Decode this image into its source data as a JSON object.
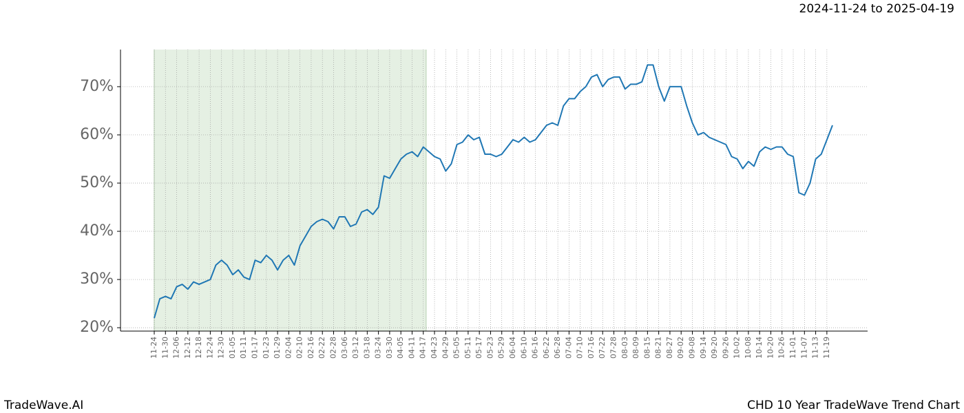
{
  "chart_data": {
    "type": "line",
    "subtitle": "2024-11-24 to 2025-04-19",
    "footer_left": "TradeWave.AI",
    "footer_right": "CHD 10 Year TradeWave Trend Chart",
    "categories": [
      "11-24",
      null,
      "11-30",
      null,
      "12-06",
      null,
      "12-12",
      null,
      "12-18",
      null,
      "12-24",
      null,
      "12-30",
      null,
      "01-05",
      null,
      "01-11",
      null,
      "01-17",
      null,
      "01-23",
      null,
      "01-29",
      null,
      "02-04",
      null,
      "02-10",
      null,
      "02-16",
      null,
      "02-22",
      null,
      "02-28",
      null,
      "03-06",
      null,
      "03-12",
      null,
      "03-18",
      null,
      "03-24",
      null,
      "03-30",
      null,
      "04-05",
      null,
      "04-11",
      null,
      "04-17",
      null,
      "04-23",
      null,
      "04-29",
      null,
      "05-05",
      null,
      "05-11",
      null,
      "05-17",
      null,
      "05-23",
      null,
      "05-29",
      null,
      "06-04",
      null,
      "06-10",
      null,
      "06-16",
      null,
      "06-22",
      null,
      "06-28",
      null,
      "07-04",
      null,
      "07-10",
      null,
      "07-16",
      null,
      "07-22",
      null,
      "07-28",
      null,
      "08-03",
      null,
      "08-09",
      null,
      "08-15",
      null,
      "08-21",
      null,
      "08-27",
      null,
      "09-02",
      null,
      "09-08",
      null,
      "09-14",
      null,
      "09-20",
      null,
      "09-26",
      null,
      "10-02",
      null,
      "10-08",
      null,
      "10-14",
      null,
      "10-20",
      null,
      "10-26",
      null,
      "11-01",
      null,
      "11-07",
      null,
      "11-13",
      null,
      "11-19",
      null
    ],
    "values": [
      22,
      26,
      26.5,
      26,
      28.5,
      29,
      28,
      29.5,
      29,
      29.5,
      30,
      33,
      34,
      33,
      31,
      32,
      30.5,
      30,
      34,
      33.5,
      35,
      34,
      32,
      34,
      35,
      33,
      37,
      39,
      41,
      42,
      42.5,
      42,
      40.5,
      43,
      43,
      41,
      41.5,
      44,
      44.5,
      43.5,
      45,
      51.5,
      51,
      53,
      55,
      56,
      56.5,
      55.5,
      57.5,
      56.5,
      55.5,
      55,
      52.5,
      54,
      58,
      58.5,
      60,
      59,
      59.5,
      56,
      56,
      55.5,
      56,
      57.5,
      59,
      58.5,
      59.5,
      58.5,
      59,
      60.5,
      62,
      62.5,
      62,
      66,
      67.5,
      67.5,
      69,
      70,
      72,
      72.5,
      70,
      71.5,
      72,
      72,
      69.5,
      70.5,
      70.5,
      71,
      74.5,
      74.5,
      70,
      67,
      70,
      70,
      70,
      66,
      62.5,
      60,
      60.5,
      59.5,
      59,
      58.5,
      58,
      55.5,
      55,
      53,
      54.5,
      53.5,
      56.5,
      57.5,
      57,
      57.5,
      57.5,
      56,
      55.5,
      48,
      47.5,
      50,
      55,
      56,
      59,
      62
    ],
    "color": "#1f77b4",
    "highlight": {
      "start": "11-24",
      "end": "04-17",
      "color": "#e5f0e3"
    },
    "ylim": [
      19.3,
      77.7
    ],
    "yticks": [
      {
        "value": 20,
        "label": "20%"
      },
      {
        "value": 30,
        "label": "30%"
      },
      {
        "value": 40,
        "label": "40%"
      },
      {
        "value": 50,
        "label": "50%"
      },
      {
        "value": 60,
        "label": "60%"
      },
      {
        "value": 70,
        "label": "70%"
      }
    ],
    "grid": true
  }
}
